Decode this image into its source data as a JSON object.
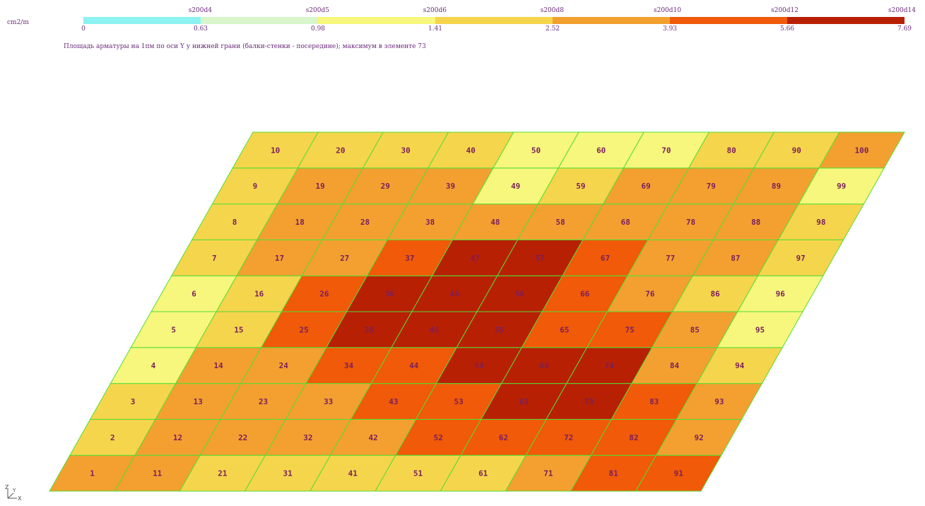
{
  "legend": {
    "unit": "cm2/m",
    "top_labels": [
      "s200d4",
      "s200d5",
      "s200d6",
      "s200d8",
      "s200d10",
      "s200d12",
      "s200d14"
    ],
    "bottom_labels": [
      "0",
      "0.63",
      "0.98",
      "1.41",
      "2.52",
      "3.93",
      "5.66",
      "7.69"
    ],
    "colors": [
      "#8cf2f2",
      "#d8f5cb",
      "#f6f77c",
      "#f5d54c",
      "#f3a030",
      "#f05a08",
      "#b82004"
    ],
    "caption": "Площадь арматуры на 1пм по оси Y у нижней грани (балки-стенки - посередине); максимум в элементе 73"
  },
  "mesh": {
    "grid_color": "#55dd33",
    "label_color": "#7a1f5c",
    "levels_by_row_from_bottom": [
      [
        4,
        4,
        3,
        3,
        3,
        3,
        3,
        4,
        5,
        5
      ],
      [
        3,
        4,
        4,
        4,
        4,
        5,
        5,
        5,
        5,
        4
      ],
      [
        3,
        4,
        4,
        4,
        5,
        5,
        6,
        6,
        5,
        4
      ],
      [
        2,
        4,
        4,
        5,
        5,
        6,
        6,
        6,
        4,
        3
      ],
      [
        2,
        3,
        5,
        6,
        6,
        6,
        5,
        5,
        4,
        2
      ],
      [
        2,
        3,
        5,
        6,
        6,
        6,
        5,
        4,
        3,
        2
      ],
      [
        3,
        4,
        4,
        5,
        6,
        6,
        5,
        4,
        4,
        3
      ],
      [
        3,
        4,
        4,
        4,
        4,
        4,
        4,
        4,
        4,
        3
      ],
      [
        3,
        4,
        4,
        4,
        2,
        3,
        4,
        4,
        4,
        2
      ],
      [
        3,
        3,
        3,
        3,
        2,
        2,
        2,
        3,
        3,
        4
      ]
    ]
  },
  "axes": {
    "z": "Z",
    "y": "Y",
    "x": "X"
  }
}
